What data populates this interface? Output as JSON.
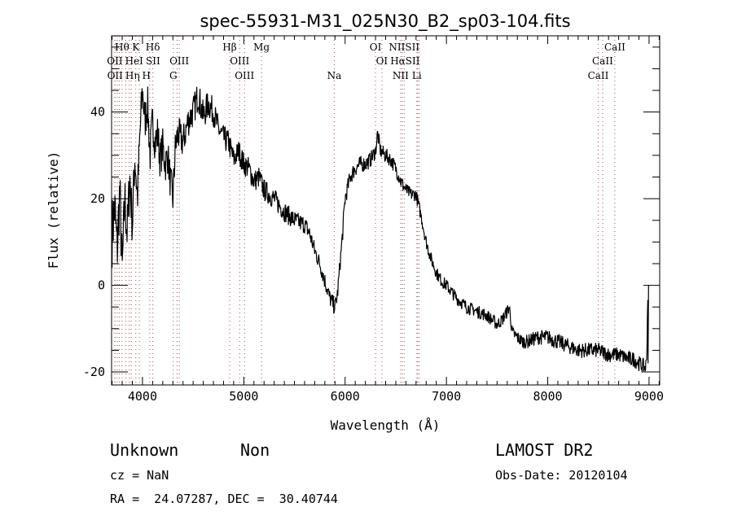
{
  "chart_data": {
    "type": "line",
    "title": "spec-55931-M31_025N30_B2_sp03-104.fits",
    "xlabel": "Wavelength (Å)",
    "ylabel": "Flux (relative)",
    "xlim": [
      3695,
      9105
    ],
    "ylim": [
      -23,
      57.6
    ],
    "x_ticks": [
      4000,
      5000,
      6000,
      7000,
      8000,
      9000
    ],
    "y_ticks": [
      -20,
      0,
      20,
      40
    ],
    "grid": false,
    "series": [
      {
        "name": "spectrum",
        "color": "#000000",
        "x": [
          3700,
          3725,
          3750,
          3775,
          3800,
          3825,
          3850,
          3875,
          3900,
          3925,
          3950,
          3975,
          4000,
          4025,
          4050,
          4075,
          4100,
          4125,
          4150,
          4175,
          4200,
          4225,
          4250,
          4275,
          4300,
          4325,
          4350,
          4400,
          4450,
          4500,
          4550,
          4600,
          4650,
          4700,
          4750,
          4800,
          4850,
          4900,
          4950,
          5000,
          5050,
          5100,
          5150,
          5200,
          5300,
          5400,
          5500,
          5600,
          5650,
          5700,
          5750,
          5800,
          5850,
          5900,
          5925,
          5950,
          5975,
          6000,
          6050,
          6100,
          6150,
          6200,
          6250,
          6300,
          6320,
          6350,
          6400,
          6450,
          6500,
          6550,
          6600,
          6650,
          6700,
          6750,
          6800,
          6850,
          6900,
          6950,
          7000,
          7100,
          7200,
          7300,
          7400,
          7500,
          7550,
          7600,
          7620,
          7650,
          7700,
          7750,
          7800,
          7900,
          8000,
          8100,
          8200,
          8300,
          8400,
          8500,
          8600,
          8700,
          8800,
          8850,
          8900,
          8960,
          8975,
          8990,
          9000
        ],
        "y": [
          12,
          18,
          8,
          22,
          3,
          20,
          12,
          25,
          14,
          30,
          20,
          35,
          45,
          38,
          42,
          30,
          38,
          33,
          35,
          29,
          32,
          28,
          30,
          24,
          20,
          32,
          35,
          33,
          38,
          40,
          44,
          39,
          42,
          40,
          36,
          34,
          33,
          29,
          31,
          28,
          27,
          24,
          25,
          22,
          20,
          17,
          15,
          14,
          12,
          8,
          5,
          1,
          -3,
          -5,
          -2,
          5,
          12,
          20,
          25,
          27,
          28,
          28,
          29,
          31,
          35,
          31,
          30,
          29,
          27,
          24,
          22,
          21,
          21,
          16,
          10,
          6,
          3,
          1,
          0,
          -3,
          -5,
          -6,
          -7,
          -9,
          -8,
          -6,
          -5,
          -11,
          -12,
          -13,
          -13,
          -12,
          -12,
          -13,
          -14,
          -15,
          -15,
          -15,
          -16,
          -16,
          -17,
          -17,
          -18,
          -19,
          -18,
          0,
          0
        ],
        "noise_amplitude": [
          [
            3700,
            8
          ],
          [
            4000,
            5
          ],
          [
            4800,
            3
          ],
          [
            5700,
            2
          ],
          [
            6000,
            2
          ],
          [
            6800,
            1.5
          ],
          [
            7600,
            1.5
          ],
          [
            8000,
            1.8
          ],
          [
            9000,
            1.8
          ]
        ]
      }
    ],
    "line_markers": [
      {
        "label": "Hθ",
        "wavelength": 3798,
        "row": 0
      },
      {
        "label": "K",
        "wavelength": 3934,
        "row": 0
      },
      {
        "label": "Hδ",
        "wavelength": 4102,
        "row": 0
      },
      {
        "label": "Hβ",
        "wavelength": 4861,
        "row": 0
      },
      {
        "label": "Mg",
        "wavelength": 5175,
        "row": 0
      },
      {
        "label": "OI",
        "wavelength": 6300,
        "row": 0
      },
      {
        "label": "NIISII",
        "wavelength": 6583,
        "row": 0
      },
      {
        "label": "CaII",
        "wavelength": 8662,
        "row": 0
      },
      {
        "label": "OII",
        "wavelength": 3727,
        "row": 1
      },
      {
        "label": "HeI",
        "wavelength": 3889,
        "row": 1
      },
      {
        "label": "SII",
        "wavelength": 4072,
        "row": 1
      },
      {
        "label": "OIII",
        "wavelength": 4363,
        "row": 1
      },
      {
        "label": "OIII",
        "wavelength": 4959,
        "row": 1
      },
      {
        "label": "OI",
        "wavelength": 6363,
        "row": 1
      },
      {
        "label": "HαSII",
        "wavelength": 6563,
        "row": 1
      },
      {
        "label": "CaII",
        "wavelength": 8542,
        "row": 1
      },
      {
        "label": "OII",
        "wavelength": 3729,
        "row": 2
      },
      {
        "label": "Hη",
        "wavelength": 3835,
        "row": 2
      },
      {
        "label": "H",
        "wavelength": 3969,
        "row": 2
      },
      {
        "label": "G",
        "wavelength": 4304,
        "row": 2
      },
      {
        "label": "OIII",
        "wavelength": 5007,
        "row": 2
      },
      {
        "label": "Na",
        "wavelength": 5893,
        "row": 2
      },
      {
        "label": "NII",
        "wavelength": 6548,
        "row": 2
      },
      {
        "label": "Li",
        "wavelength": 6708,
        "row": 2
      },
      {
        "label": "CaII",
        "wavelength": 8498,
        "row": 2
      }
    ],
    "extra_marker_lines": [
      3750,
      3771,
      3869,
      4341,
      6731,
      6716
    ],
    "marker_color": "#a05050"
  },
  "info": {
    "class": "Unknown",
    "subclass": "Non",
    "cz": "cz = NaN",
    "radec": "RA =  24.07287, DEC =  30.40744",
    "survey": "LAMOST DR2",
    "obs_date": "Obs-Date: 20120104"
  }
}
